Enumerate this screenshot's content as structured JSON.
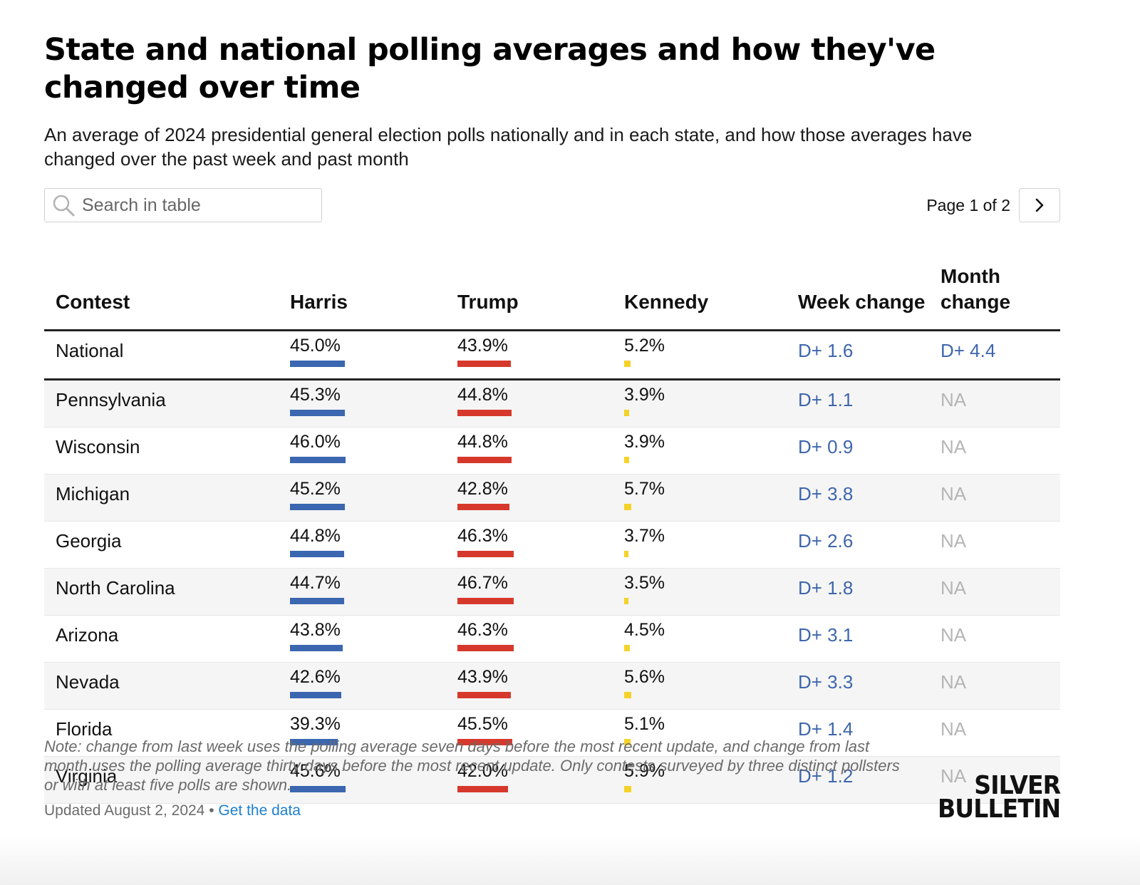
{
  "title": "State and national polling averages and how they've changed over time",
  "subtitle": "An average of 2024 presidential general election polls nationally and in each state, and how those averages have changed over the past week and past month",
  "search": {
    "placeholder": "Search in table",
    "icon": "search-icon"
  },
  "pager": {
    "label": "Page 1 of 2",
    "next_icon": "chevron-right-icon"
  },
  "colors": {
    "harris": "#3b66b0",
    "trump": "#d6392c",
    "kennedy": "#f5d22a",
    "change": "#3e66ad",
    "na": "#b5b5b5"
  },
  "chart_data": {
    "type": "table",
    "columns": [
      "Contest",
      "Harris",
      "Trump",
      "Kennedy",
      "Week change",
      "Month change"
    ],
    "rows": [
      {
        "contest": "National",
        "harris": 45.0,
        "trump": 43.9,
        "kennedy": 5.2,
        "harris_label": "45.0%",
        "trump_label": "43.9%",
        "kennedy_label": "5.2%",
        "week": "D+ 1.6",
        "month": "D+ 4.4"
      },
      {
        "contest": "Pennsylvania",
        "harris": 45.3,
        "trump": 44.8,
        "kennedy": 3.9,
        "harris_label": "45.3%",
        "trump_label": "44.8%",
        "kennedy_label": "3.9%",
        "week": "D+ 1.1",
        "month": "NA"
      },
      {
        "contest": "Wisconsin",
        "harris": 46.0,
        "trump": 44.8,
        "kennedy": 3.9,
        "harris_label": "46.0%",
        "trump_label": "44.8%",
        "kennedy_label": "3.9%",
        "week": "D+ 0.9",
        "month": "NA"
      },
      {
        "contest": "Michigan",
        "harris": 45.2,
        "trump": 42.8,
        "kennedy": 5.7,
        "harris_label": "45.2%",
        "trump_label": "42.8%",
        "kennedy_label": "5.7%",
        "week": "D+ 3.8",
        "month": "NA"
      },
      {
        "contest": "Georgia",
        "harris": 44.8,
        "trump": 46.3,
        "kennedy": 3.7,
        "harris_label": "44.8%",
        "trump_label": "46.3%",
        "kennedy_label": "3.7%",
        "week": "D+ 2.6",
        "month": "NA"
      },
      {
        "contest": "North Carolina",
        "harris": 44.7,
        "trump": 46.7,
        "kennedy": 3.5,
        "harris_label": "44.7%",
        "trump_label": "46.7%",
        "kennedy_label": "3.5%",
        "week": "D+ 1.8",
        "month": "NA"
      },
      {
        "contest": "Arizona",
        "harris": 43.8,
        "trump": 46.3,
        "kennedy": 4.5,
        "harris_label": "43.8%",
        "trump_label": "46.3%",
        "kennedy_label": "4.5%",
        "week": "D+ 3.1",
        "month": "NA"
      },
      {
        "contest": "Nevada",
        "harris": 42.6,
        "trump": 43.9,
        "kennedy": 5.6,
        "harris_label": "42.6%",
        "trump_label": "43.9%",
        "kennedy_label": "5.6%",
        "week": "D+ 3.3",
        "month": "NA"
      },
      {
        "contest": "Florida",
        "harris": 39.3,
        "trump": 45.5,
        "kennedy": 5.1,
        "harris_label": "39.3%",
        "trump_label": "45.5%",
        "kennedy_label": "5.1%",
        "week": "D+ 1.4",
        "month": "NA"
      },
      {
        "contest": "Virginia",
        "harris": 45.6,
        "trump": 42.0,
        "kennedy": 5.9,
        "harris_label": "45.6%",
        "trump_label": "42.0%",
        "kennedy_label": "5.9%",
        "week": "D+ 1.2",
        "month": "NA"
      }
    ]
  },
  "note": "Note: change from last week uses the polling average seven days before the most recent update, and change from last month uses the polling average thirty days before the most recent update. Only contests surveyed by three distinct pollsters or with at least five polls are shown.",
  "updated": {
    "text": "Updated August 2, 2024",
    "separator": "•",
    "link": "Get the data"
  },
  "logo": {
    "line1": "SILVER",
    "line2": "BULLETIN"
  }
}
